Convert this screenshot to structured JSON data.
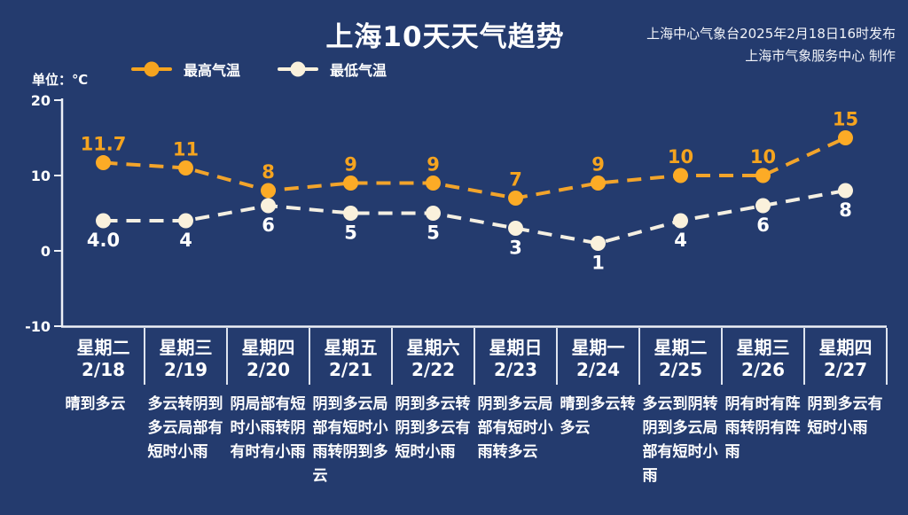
{
  "header": {
    "title": "上海10天天气趋势",
    "source_line1": "上海中心气象台2025年2月18日16时发布",
    "source_line2": "上海市气象服务中心 制作"
  },
  "unit_label": "单位：℃",
  "legend": {
    "high": {
      "label": "最高气温",
      "color": "#F5A41F"
    },
    "low": {
      "label": "最低气温",
      "color": "#FAF1DC"
    }
  },
  "colors": {
    "background": "#243B6E",
    "axis": "#EDF0F6",
    "divider": "#E9EDF5",
    "high_accent": "#F5A41F",
    "low_accent": "#FAF1DC",
    "text": "#FFFFFF"
  },
  "chart_data": {
    "type": "line",
    "title": "上海10天天气趋势",
    "ylabel": "℃",
    "ylim": [
      -10,
      20
    ],
    "yticks": [
      20,
      10,
      0,
      -10
    ],
    "grid": false,
    "legend_position": "top-left",
    "categories": [
      {
        "weekday": "星期二",
        "date": "2/18",
        "weather": "晴到多云"
      },
      {
        "weekday": "星期三",
        "date": "2/19",
        "weather": "多云转阴到多云局部有短时小雨"
      },
      {
        "weekday": "星期四",
        "date": "2/20",
        "weather": "阴局部有短时小雨转阴有时有小雨"
      },
      {
        "weekday": "星期五",
        "date": "2/21",
        "weather": "阴到多云局部有短时小雨转阴到多云"
      },
      {
        "weekday": "星期六",
        "date": "2/22",
        "weather": "阴到多云转阴到多云有短时小雨"
      },
      {
        "weekday": "星期日",
        "date": "2/23",
        "weather": "阴到多云局部有短时小雨转多云"
      },
      {
        "weekday": "星期一",
        "date": "2/24",
        "weather": "晴到多云转多云"
      },
      {
        "weekday": "星期二",
        "date": "2/25",
        "weather": "多云到阴转阴到多云局部有短时小雨"
      },
      {
        "weekday": "星期三",
        "date": "2/26",
        "weather": "阴有时有阵雨转阴有阵雨"
      },
      {
        "weekday": "星期四",
        "date": "2/27",
        "weather": "阴到多云有短时小雨"
      }
    ],
    "series": [
      {
        "key": "high-temp",
        "name": "最高气温",
        "values": [
          11.7,
          11,
          8,
          9,
          9,
          7,
          9,
          10,
          10,
          15
        ],
        "labels": [
          "11.7",
          "11",
          "8",
          "9",
          "9",
          "7",
          "9",
          "10",
          "10",
          "15"
        ],
        "line_color": "#F2A42B",
        "marker_color": "#FCAB26",
        "label_color": "#F5A41F",
        "label_position": "above"
      },
      {
        "key": "low-temp",
        "name": "最低气温",
        "values": [
          4,
          4,
          6,
          5,
          5,
          3,
          1,
          4,
          6,
          8
        ],
        "labels": [
          "4.0",
          "4",
          "6",
          "5",
          "5",
          "3",
          "1",
          "4",
          "6",
          "8"
        ],
        "line_color": "#F4EFE2",
        "marker_color": "#FAF1DC",
        "label_color": "#FFFFFF",
        "label_position": "below"
      }
    ]
  }
}
